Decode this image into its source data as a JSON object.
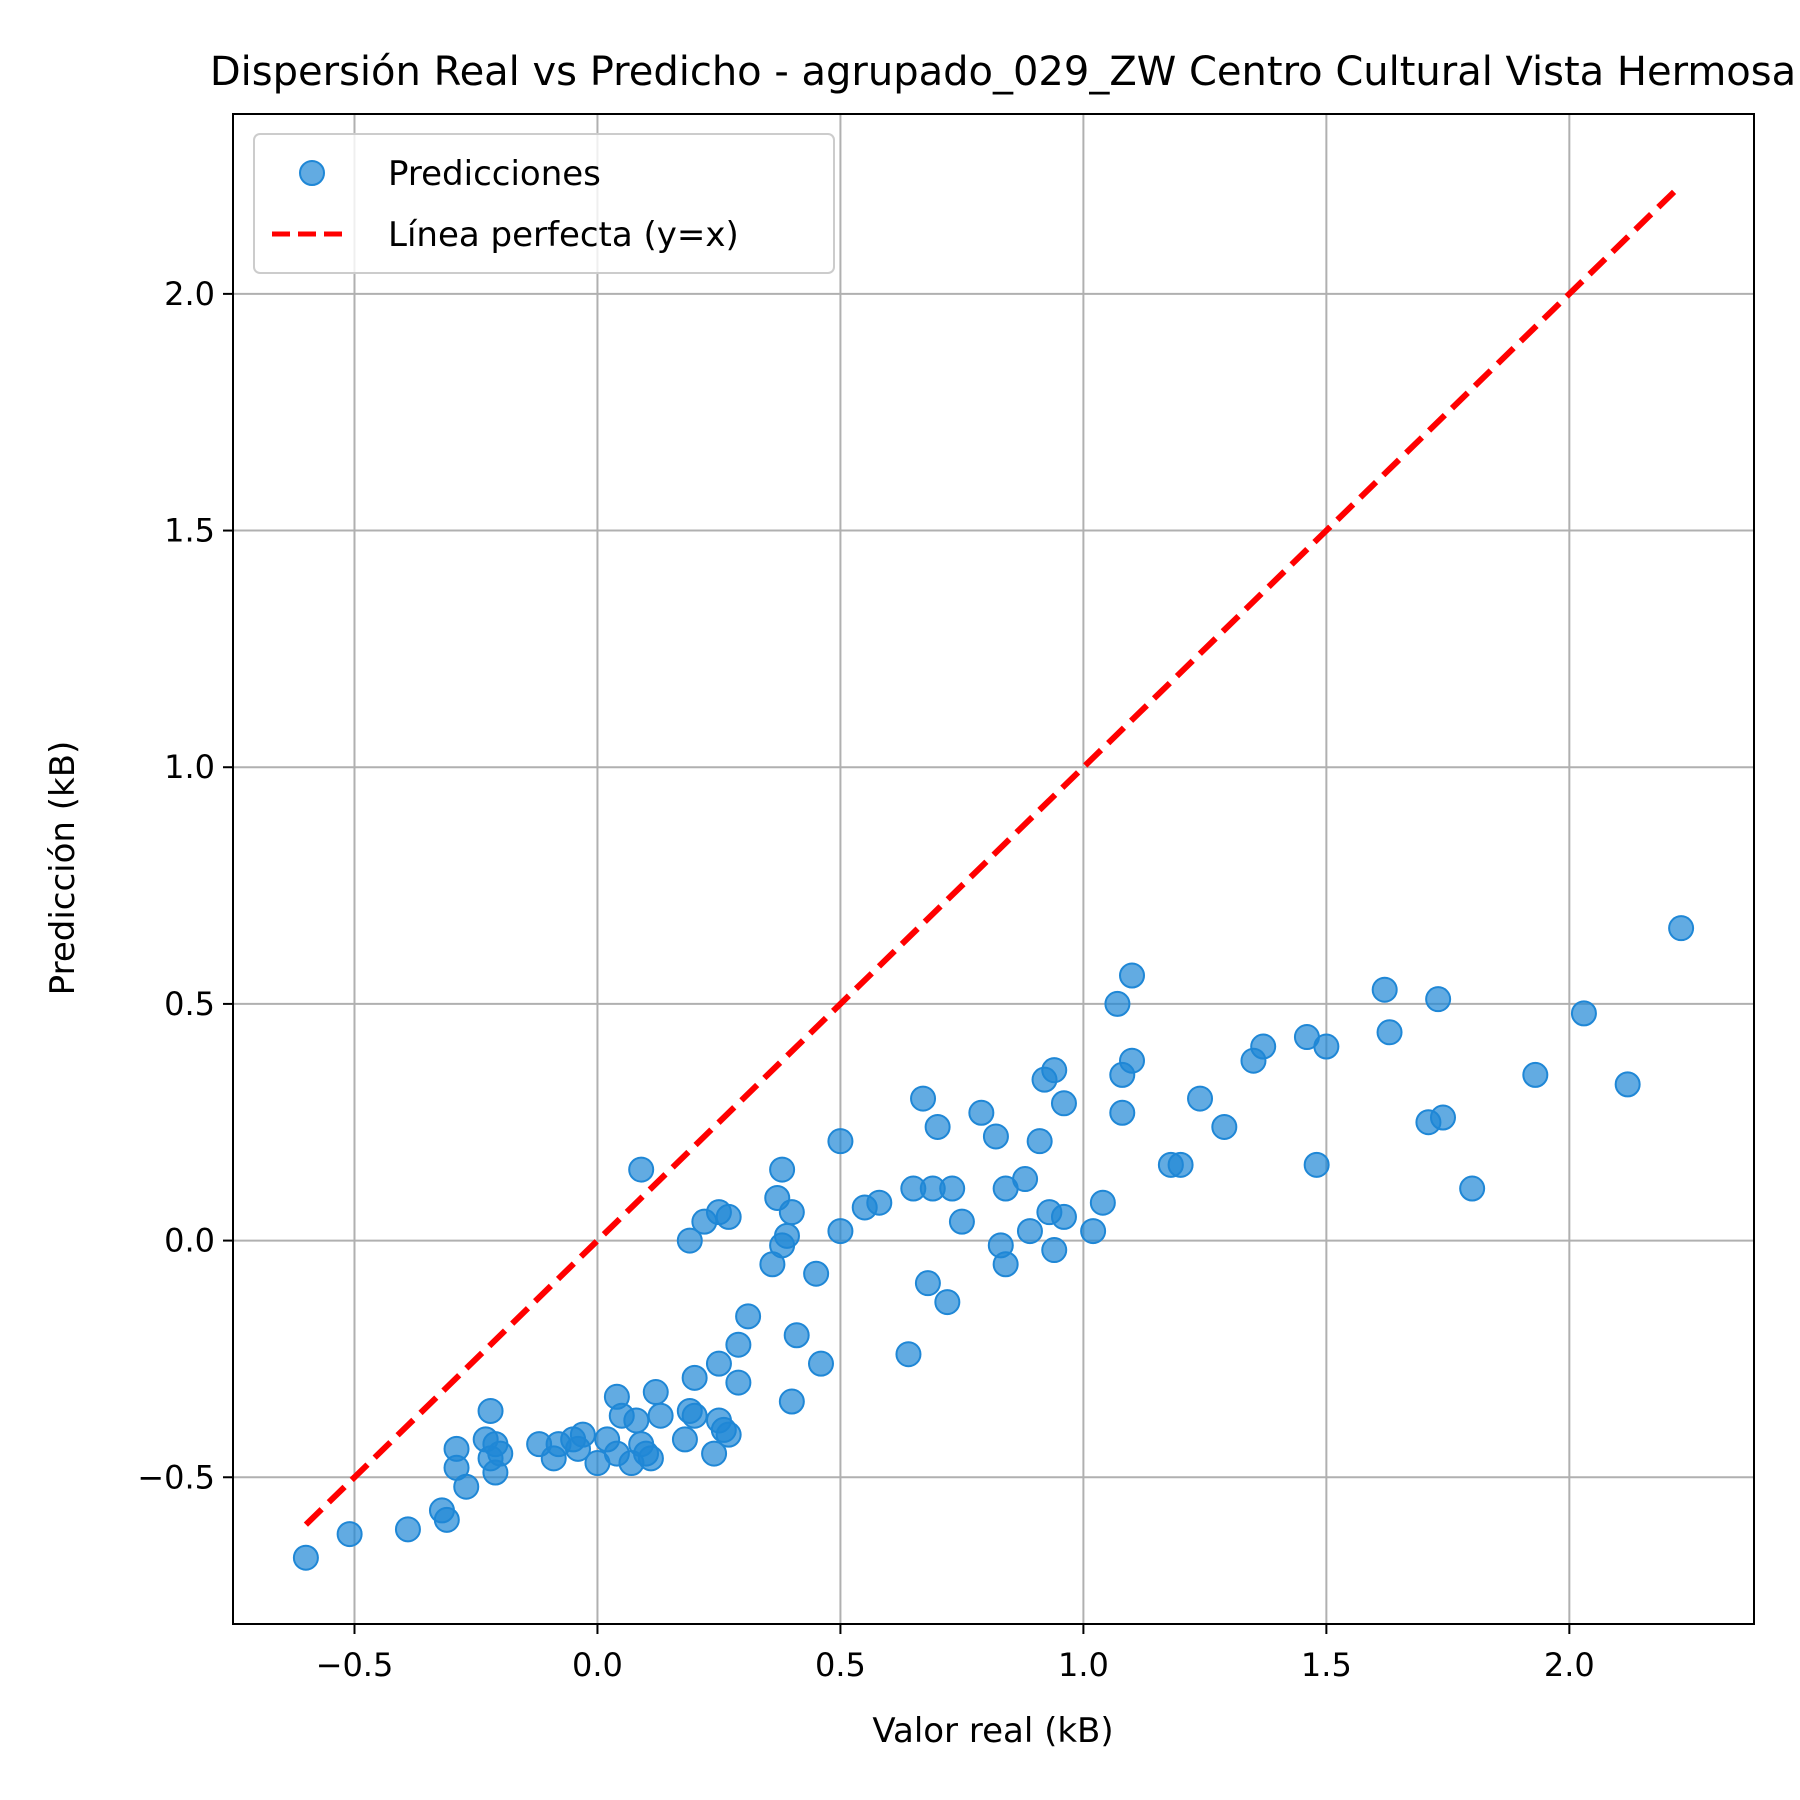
{
  "chart_data": {
    "type": "scatter",
    "title": "Dispersión Real vs Predicho - agrupado_029_ZW Centro Cultural Vista Hermosa",
    "xlabel": "Valor real (kB)",
    "ylabel": "Predicción (kB)",
    "xlim": [
      -0.75,
      2.38
    ],
    "ylim": [
      -0.81,
      2.38
    ],
    "xticks": [
      -0.5,
      0.0,
      0.5,
      1.0,
      1.5,
      2.0
    ],
    "yticks": [
      -0.5,
      0.0,
      0.5,
      1.0,
      1.5,
      2.0
    ],
    "xtick_labels": [
      "−0.5",
      "0.0",
      "0.5",
      "1.0",
      "1.5",
      "2.0"
    ],
    "ytick_labels": [
      "−0.5",
      "0.0",
      "0.5",
      "1.0",
      "1.5",
      "2.0"
    ],
    "grid": true,
    "legend_position": "top-left",
    "series": [
      {
        "name": "Predicciones",
        "kind": "scatter",
        "color": "#1f87d6",
        "points": [
          [
            -0.6,
            -0.67
          ],
          [
            -0.51,
            -0.62
          ],
          [
            -0.39,
            -0.61
          ],
          [
            -0.32,
            -0.57
          ],
          [
            -0.31,
            -0.59
          ],
          [
            -0.29,
            -0.44
          ],
          [
            -0.29,
            -0.48
          ],
          [
            -0.27,
            -0.52
          ],
          [
            -0.23,
            -0.42
          ],
          [
            -0.22,
            -0.36
          ],
          [
            -0.22,
            -0.46
          ],
          [
            -0.21,
            -0.49
          ],
          [
            -0.21,
            -0.43
          ],
          [
            -0.2,
            -0.45
          ],
          [
            -0.12,
            -0.43
          ],
          [
            -0.09,
            -0.46
          ],
          [
            -0.08,
            -0.43
          ],
          [
            -0.05,
            -0.42
          ],
          [
            -0.04,
            -0.44
          ],
          [
            -0.03,
            -0.41
          ],
          [
            0.0,
            -0.47
          ],
          [
            0.02,
            -0.42
          ],
          [
            0.04,
            -0.33
          ],
          [
            0.04,
            -0.45
          ],
          [
            0.05,
            -0.37
          ],
          [
            0.07,
            -0.47
          ],
          [
            0.08,
            -0.38
          ],
          [
            0.09,
            -0.43
          ],
          [
            0.09,
            0.15
          ],
          [
            0.1,
            -0.45
          ],
          [
            0.11,
            -0.46
          ],
          [
            0.12,
            -0.32
          ],
          [
            0.13,
            -0.37
          ],
          [
            0.18,
            -0.42
          ],
          [
            0.19,
            0.0
          ],
          [
            0.19,
            -0.36
          ],
          [
            0.2,
            -0.29
          ],
          [
            0.2,
            -0.37
          ],
          [
            0.22,
            0.04
          ],
          [
            0.24,
            -0.45
          ],
          [
            0.25,
            -0.26
          ],
          [
            0.25,
            -0.38
          ],
          [
            0.25,
            0.06
          ],
          [
            0.26,
            -0.4
          ],
          [
            0.27,
            0.05
          ],
          [
            0.27,
            -0.41
          ],
          [
            0.29,
            -0.22
          ],
          [
            0.29,
            -0.3
          ],
          [
            0.31,
            -0.16
          ],
          [
            0.36,
            -0.05
          ],
          [
            0.37,
            0.09
          ],
          [
            0.38,
            0.15
          ],
          [
            0.38,
            -0.01
          ],
          [
            0.39,
            0.01
          ],
          [
            0.4,
            0.06
          ],
          [
            0.4,
            -0.34
          ],
          [
            0.41,
            -0.2
          ],
          [
            0.45,
            -0.07
          ],
          [
            0.46,
            -0.26
          ],
          [
            0.5,
            0.21
          ],
          [
            0.5,
            0.02
          ],
          [
            0.55,
            0.07
          ],
          [
            0.58,
            0.08
          ],
          [
            0.64,
            -0.24
          ],
          [
            0.65,
            0.11
          ],
          [
            0.67,
            0.3
          ],
          [
            0.68,
            -0.09
          ],
          [
            0.69,
            0.11
          ],
          [
            0.7,
            0.24
          ],
          [
            0.72,
            -0.13
          ],
          [
            0.73,
            0.11
          ],
          [
            0.75,
            0.04
          ],
          [
            0.79,
            0.27
          ],
          [
            0.82,
            0.22
          ],
          [
            0.83,
            -0.01
          ],
          [
            0.84,
            -0.05
          ],
          [
            0.84,
            0.11
          ],
          [
            0.88,
            0.13
          ],
          [
            0.89,
            0.02
          ],
          [
            0.91,
            0.21
          ],
          [
            0.92,
            0.34
          ],
          [
            0.93,
            0.06
          ],
          [
            0.94,
            0.36
          ],
          [
            0.94,
            -0.02
          ],
          [
            0.96,
            0.05
          ],
          [
            0.96,
            0.29
          ],
          [
            1.02,
            0.02
          ],
          [
            1.04,
            0.08
          ],
          [
            1.07,
            0.5
          ],
          [
            1.08,
            0.27
          ],
          [
            1.08,
            0.35
          ],
          [
            1.1,
            0.56
          ],
          [
            1.1,
            0.38
          ],
          [
            1.18,
            0.16
          ],
          [
            1.2,
            0.16
          ],
          [
            1.24,
            0.3
          ],
          [
            1.29,
            0.24
          ],
          [
            1.35,
            0.38
          ],
          [
            1.37,
            0.41
          ],
          [
            1.46,
            0.43
          ],
          [
            1.48,
            0.16
          ],
          [
            1.5,
            0.41
          ],
          [
            1.62,
            0.53
          ],
          [
            1.63,
            0.44
          ],
          [
            1.71,
            0.25
          ],
          [
            1.73,
            0.51
          ],
          [
            1.74,
            0.26
          ],
          [
            1.8,
            0.11
          ],
          [
            1.93,
            0.35
          ],
          [
            2.03,
            0.48
          ],
          [
            2.12,
            0.33
          ],
          [
            2.23,
            0.66
          ]
        ]
      },
      {
        "name": "Línea perfecta (y=x)",
        "kind": "line",
        "style": "dashed",
        "color": "#ff0000",
        "points": [
          [
            -0.6,
            -0.6
          ],
          [
            2.23,
            2.23
          ]
        ]
      }
    ]
  }
}
